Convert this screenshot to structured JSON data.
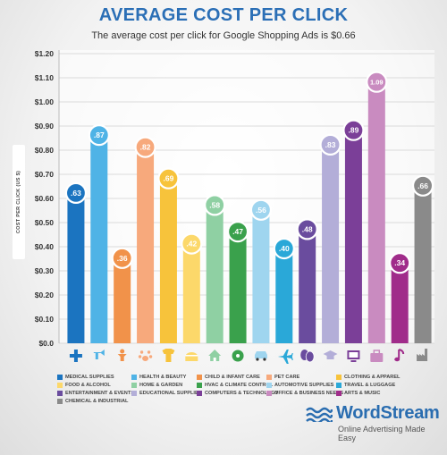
{
  "header": {
    "title": "AVERAGE COST PER CLICK",
    "subtitle": "The average cost per click for Google Shopping Ads is $0.66"
  },
  "chart_data": {
    "type": "bar",
    "title": "AVERAGE COST PER CLICK",
    "subtitle": "The average cost per click for Google Shopping Ads is $0.66",
    "ylabel": "COST PER CLICK (US $)",
    "xlabel": "",
    "ylim": [
      0,
      1.2
    ],
    "yticks": [
      "$0.0",
      "$0.10",
      "$0.20",
      "$0.30",
      "$0.40",
      "$0.50",
      "$0.60",
      "$0.70",
      "$0.80",
      "$0.90",
      "$1.00",
      "$1.10",
      "$1.20"
    ],
    "grid": true,
    "legend_position": "bottom",
    "categories": [
      "MEDICAL SUPPLIES",
      "HEALTH & BEAUTY",
      "CHILD & INFANT CARE",
      "PET CARE",
      "CLOTHING & APPAREL",
      "FOOD & ALCOHOL",
      "HOME & GARDEN",
      "HVAC & CLIMATE CONTROL",
      "AUTOMOTIVE SUPPLIES",
      "TRAVEL & LUGGAGE",
      "ENTERTAINMENT & EVENTS",
      "EDUCATIONAL SUPPLIES",
      "COMPUTERS & TECHNOLOGY",
      "OFFICE & BUSINESS NEEDS",
      "ARTS & MUSIC",
      "CHEMICAL & INDUSTRIAL"
    ],
    "values": [
      0.63,
      0.87,
      0.36,
      0.82,
      0.69,
      0.42,
      0.58,
      0.47,
      0.56,
      0.4,
      0.48,
      0.83,
      0.89,
      1.09,
      0.34,
      0.66
    ],
    "data_labels": [
      ".63",
      ".87",
      ".36",
      ".82",
      ".69",
      ".42",
      ".58",
      ".47",
      ".56",
      ".40",
      ".48",
      ".83",
      ".89",
      "1.09",
      ".34",
      ".66"
    ],
    "colors": [
      "#1b74c0",
      "#4fb3e6",
      "#f1924a",
      "#f7a97c",
      "#f7c33b",
      "#fcd86a",
      "#8fd0a3",
      "#3aa14c",
      "#9fd5ef",
      "#2aa8d8",
      "#6a4c9e",
      "#b3aed8",
      "#7b3f98",
      "#c98bc0",
      "#a02c8a",
      "#8a8a8a"
    ],
    "icons": [
      "medical-cross-icon",
      "hair-dryer-icon",
      "baby-icon",
      "paw-icon",
      "shirt-icon",
      "food-icon",
      "house-icon",
      "fan-icon",
      "car-icon",
      "airplane-icon",
      "theater-masks-icon",
      "graduation-cap-icon",
      "computer-monitor-icon",
      "briefcase-icon",
      "music-note-icon",
      "factory-icon"
    ]
  },
  "brand": {
    "name": "WordStream",
    "tagline": "Online Advertising Made Easy"
  }
}
